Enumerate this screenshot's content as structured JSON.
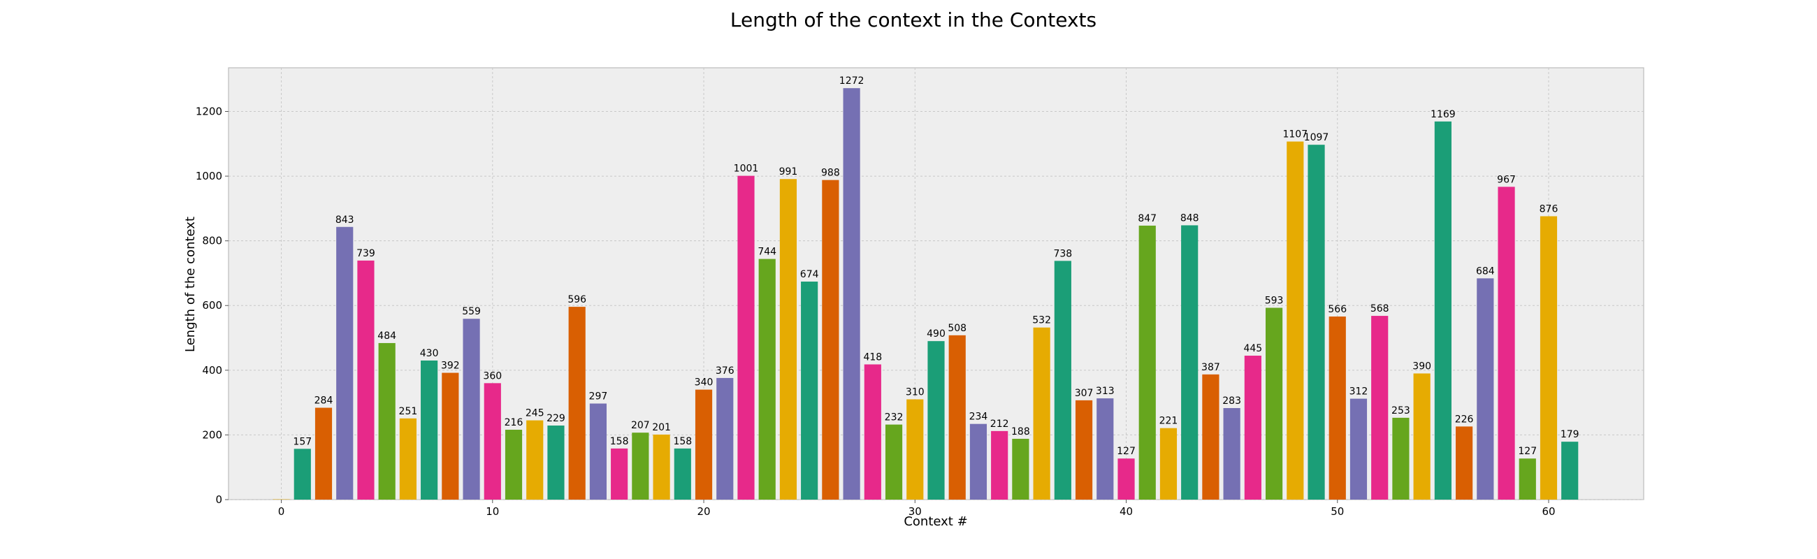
{
  "chart_data": {
    "type": "bar",
    "title": "Length of the context in the Contexts",
    "xlabel": "Context #",
    "ylabel": "Length of the context",
    "x": [
      0,
      1,
      2,
      3,
      4,
      5,
      6,
      7,
      8,
      9,
      10,
      11,
      12,
      13,
      14,
      15,
      16,
      17,
      18,
      19,
      20,
      21,
      22,
      23,
      24,
      25,
      26,
      27,
      28,
      29,
      30,
      31,
      32,
      33,
      34,
      35,
      36,
      37,
      38,
      39,
      40,
      41,
      42,
      43,
      44,
      45,
      46,
      47,
      48,
      49,
      50,
      51,
      52,
      53,
      54,
      55,
      56,
      57,
      58,
      59,
      60,
      61
    ],
    "values": [
      1,
      157,
      284,
      843,
      739,
      484,
      251,
      430,
      392,
      559,
      360,
      216,
      245,
      229,
      596,
      297,
      158,
      207,
      201,
      158,
      340,
      376,
      1001,
      744,
      991,
      674,
      988,
      1272,
      418,
      232,
      310,
      490,
      508,
      234,
      212,
      188,
      532,
      738,
      307,
      313,
      127,
      847,
      221,
      848,
      387,
      283,
      445,
      593,
      1107,
      1097,
      566,
      312,
      568,
      253,
      390,
      1169,
      226,
      684,
      967,
      127,
      876,
      179
    ],
    "data_labels_from_index": 1,
    "xlim": [
      -2.5,
      64.5
    ],
    "ylim": [
      0,
      1335
    ],
    "xticks": [
      0,
      10,
      20,
      30,
      40,
      50,
      60
    ],
    "yticks": [
      0,
      200,
      400,
      600,
      800,
      1000,
      1200
    ],
    "grid": true,
    "legend": "none",
    "colors": [
      "#1b9e77",
      "#d95f02",
      "#7570b3",
      "#e7298a",
      "#66a61e",
      "#e6ab02"
    ],
    "background": "#eeeeee",
    "frame_color": "#bcbcbc"
  }
}
